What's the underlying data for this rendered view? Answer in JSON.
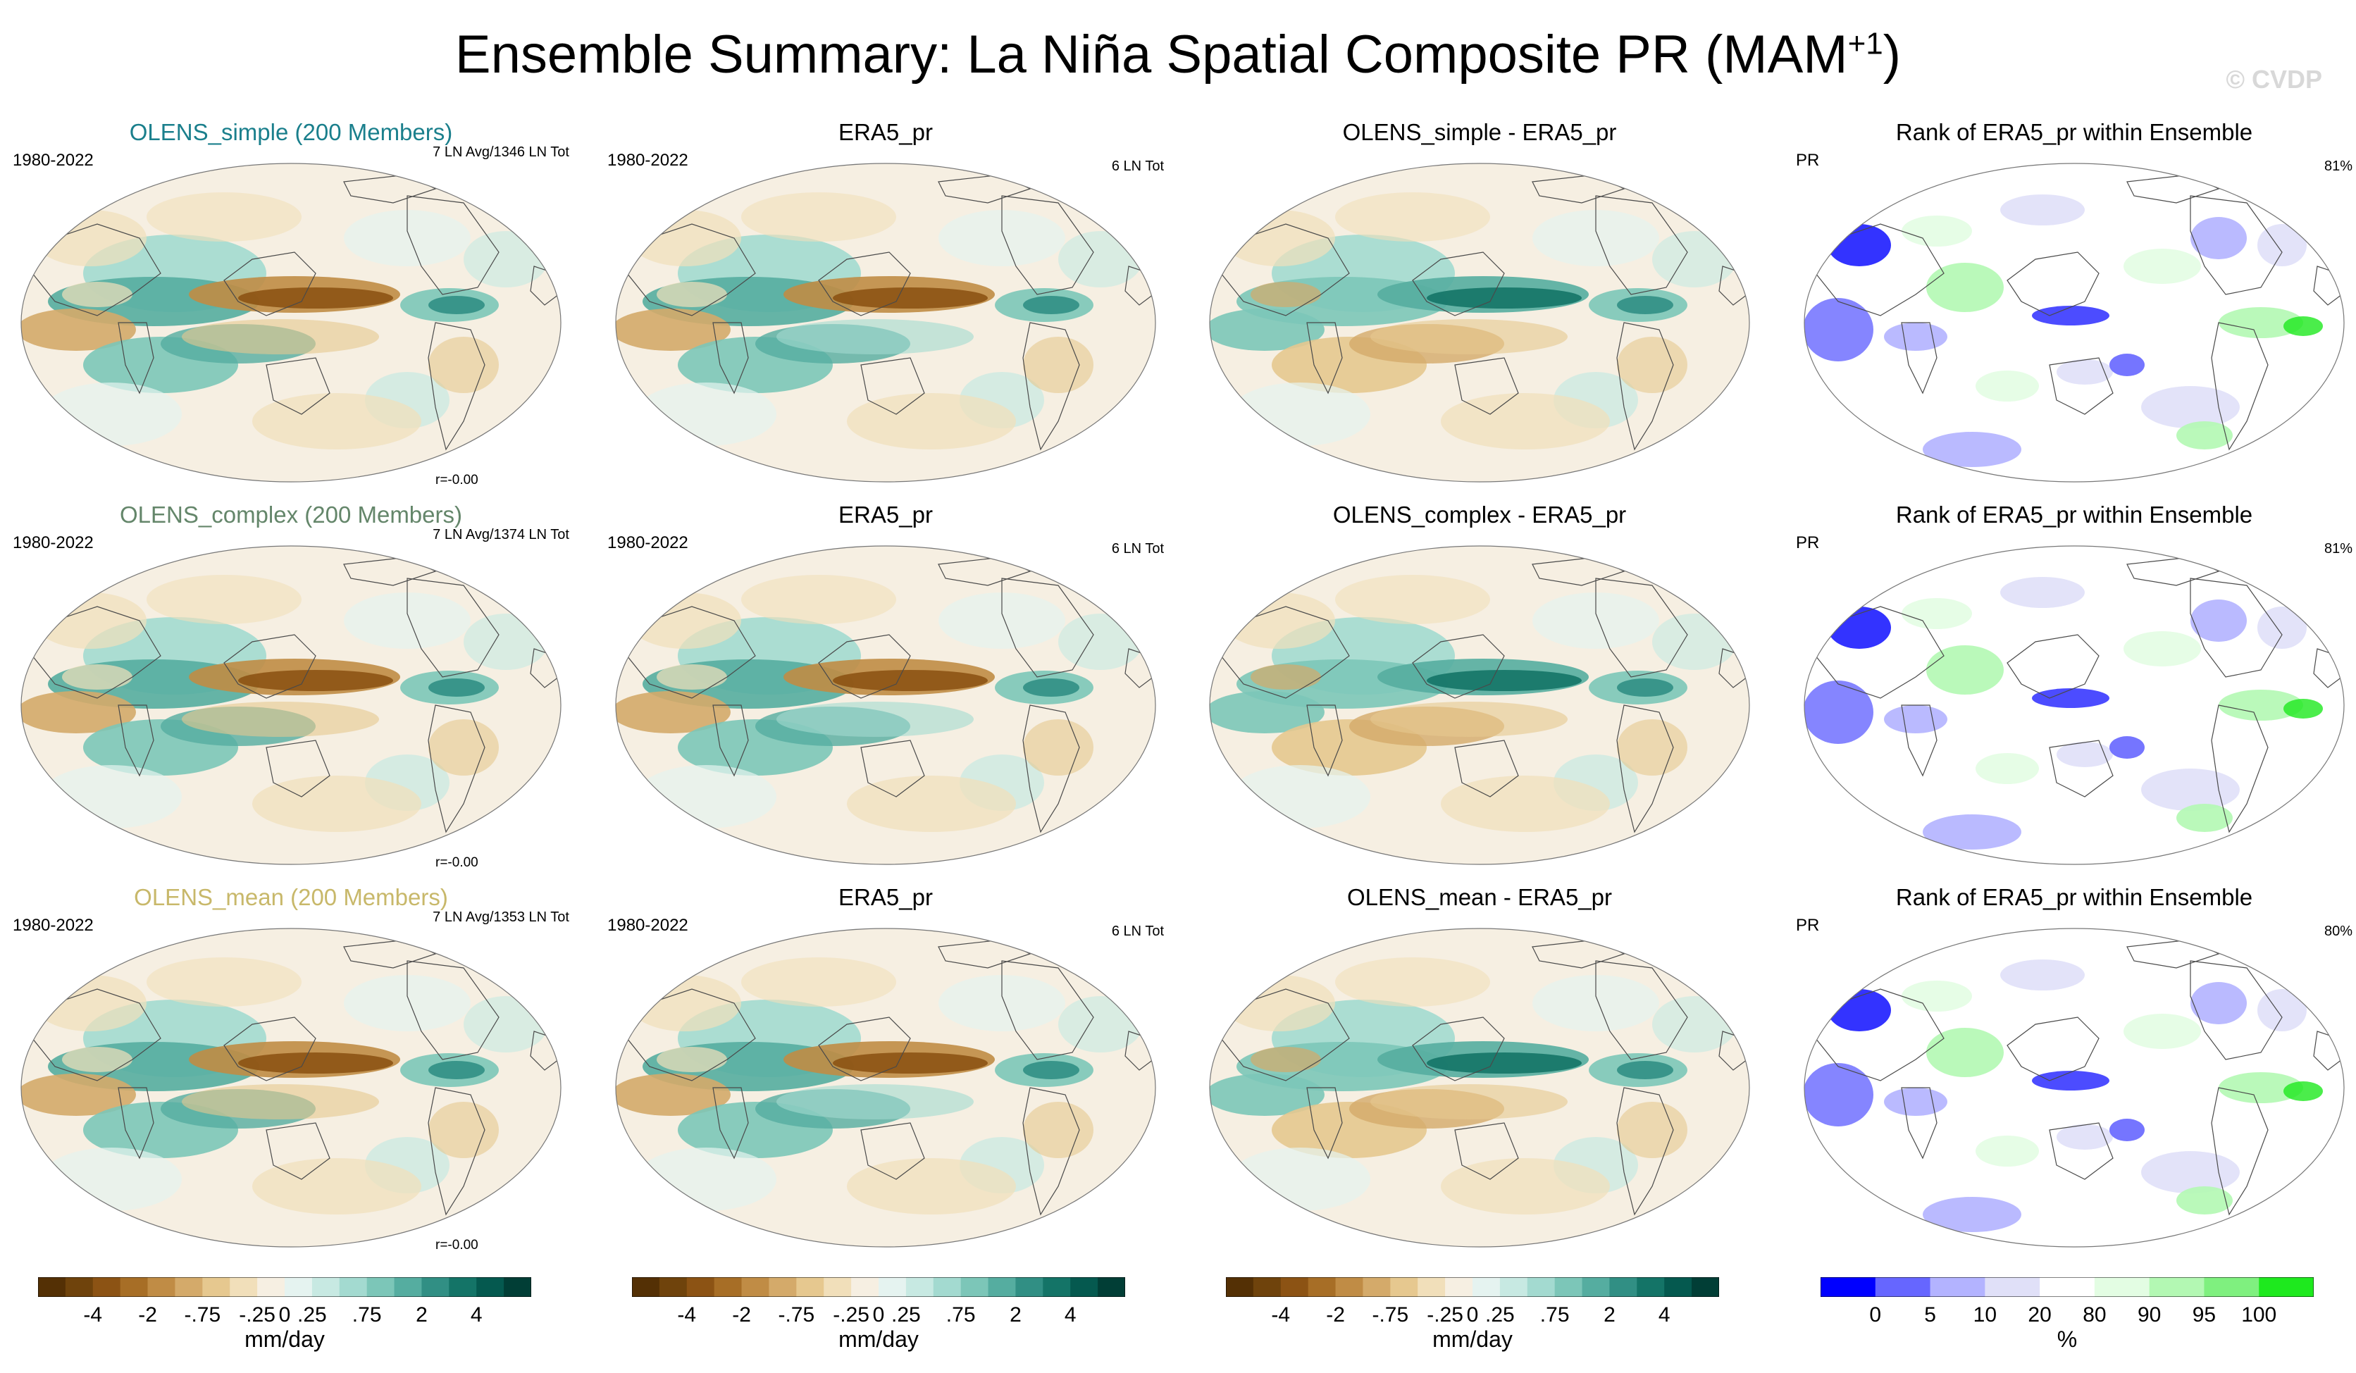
{
  "title": {
    "main": "Ensemble Summary: La Niña Spatial Composite PR (MAM",
    "sup": "+1",
    "close": ")"
  },
  "watermark": "© CVDP",
  "colors": {
    "simple": "#1a7f8c",
    "complex": "#64866a",
    "mean": "#c8b86a",
    "land": "#4a4a4a"
  },
  "rows": [
    {
      "ens": {
        "title": "OLENS_simple (200 Members)",
        "years": "1980-2022",
        "info": "7 LN Avg/1346 LN Tot",
        "r": "r=-0.00"
      },
      "obs": {
        "title": "ERA5_pr",
        "years": "1980-2022",
        "info": "6 LN Tot"
      },
      "diff": {
        "title": "OLENS_simple - ERA5_pr"
      },
      "rank": {
        "title": "Rank of ERA5_pr within Ensemble",
        "var": "PR",
        "pct": "81%"
      }
    },
    {
      "ens": {
        "title": "OLENS_complex (200 Members)",
        "years": "1980-2022",
        "info": "7 LN Avg/1374 LN Tot",
        "r": "r=-0.00"
      },
      "obs": {
        "title": "ERA5_pr",
        "years": "1980-2022",
        "info": "6 LN Tot"
      },
      "diff": {
        "title": "OLENS_complex - ERA5_pr"
      },
      "rank": {
        "title": "Rank of ERA5_pr within Ensemble",
        "var": "PR",
        "pct": "81%"
      }
    },
    {
      "ens": {
        "title": "OLENS_mean (200 Members)",
        "years": "1980-2022",
        "info": "7 LN Avg/1353 LN Tot",
        "r": "r=-0.00"
      },
      "obs": {
        "title": "ERA5_pr",
        "years": "1980-2022",
        "info": "6 LN Tot"
      },
      "diff": {
        "title": "OLENS_mean - ERA5_pr"
      },
      "rank": {
        "title": "Rank of ERA5_pr within Ensemble",
        "var": "PR",
        "pct": "80%"
      }
    }
  ],
  "colorbar_pr": {
    "unit": "mm/day",
    "ticks": [
      "-4",
      "-2",
      "-.75",
      "-.25",
      "0",
      ".25",
      ".75",
      "2",
      "4"
    ],
    "colors": [
      "#543005",
      "#6f430c",
      "#8c5314",
      "#a76e26",
      "#c08c45",
      "#d4aa6a",
      "#e6c88f",
      "#f1dfba",
      "#f6efe2",
      "#e5f3f0",
      "#c7e9e2",
      "#a3dad0",
      "#7cc6b8",
      "#55ada0",
      "#318f84",
      "#147467",
      "#05594f",
      "#013e36"
    ]
  },
  "colorbar_rank": {
    "unit": "%",
    "ticks": [
      "0",
      "5",
      "10",
      "20",
      "80",
      "90",
      "95",
      "100"
    ],
    "colors": [
      "#0000ff",
      "#6666ff",
      "#b3b3ff",
      "#e0e0f8",
      "#ffffff",
      "#e3fde3",
      "#b3f8b3",
      "#7ff07f",
      "#1ee91e"
    ]
  }
}
